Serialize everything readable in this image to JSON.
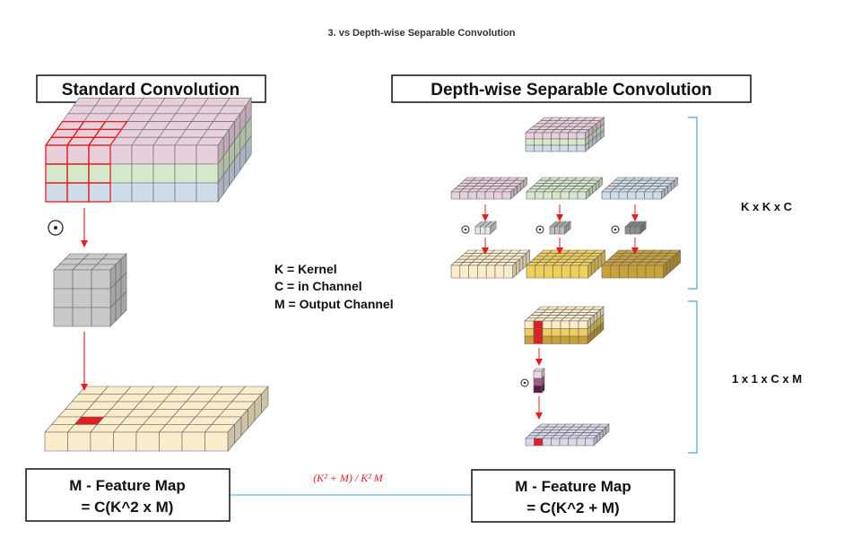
{
  "page_title": "3. vs Depth-wise Separable Convolution",
  "left_box_title": "Standard Convolution",
  "right_box_title": "Depth-wise Separable Convolution",
  "legend": [
    "K = Kernel",
    "C = in Channel",
    "M = Output Channel"
  ],
  "side_labels": {
    "depthwise": "K x K x C",
    "pointwise": "1 x 1 x C x M"
  },
  "ratio_label": "(K² + M) / K² M",
  "left_result": {
    "line1": "M - Feature Map",
    "line2": "= C(K^2 x M)"
  },
  "right_result": {
    "line1": "M - Feature Map",
    "line2": "= C(K^2 + M)"
  },
  "colors": {
    "channel_pink": "#e8cfdc",
    "channel_green": "#d6e8cc",
    "channel_blue": "#cfdcea",
    "kernel_gray": "#c9c9c9",
    "output_cream": "#fbeccb",
    "output_yellow": "#f0cf5a",
    "output_gold": "#c9a13a",
    "pointwise_lavender": "#dcd8ec",
    "highlight_red": "#e02020",
    "connector_blue": "#4aa8c8"
  },
  "icons": [
    "odot-icon",
    "arrow-down-icon",
    "bracket-icon"
  ]
}
